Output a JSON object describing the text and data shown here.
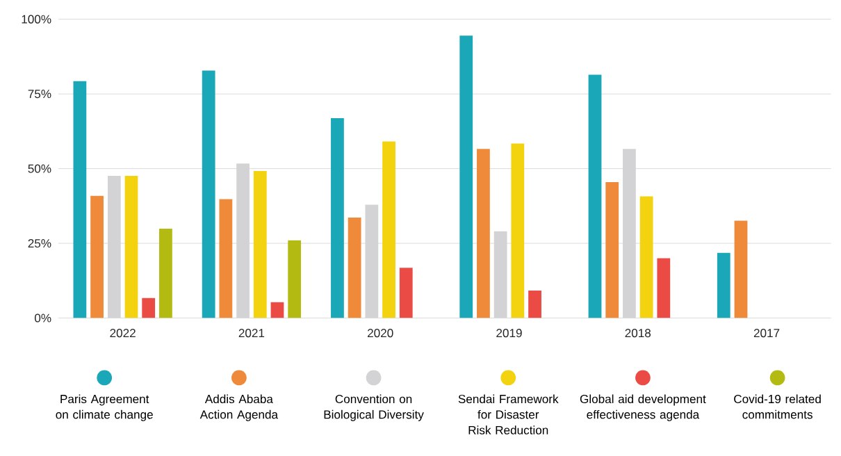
{
  "chart_data": {
    "type": "bar",
    "categories": [
      "2022",
      "2021",
      "2020",
      "2019",
      "2018",
      "2017"
    ],
    "series": [
      {
        "name": "Paris Agreement on climate change",
        "color": "#1aa8b8",
        "values": [
          79.3,
          82.8,
          66.9,
          94.5,
          81.4,
          21.8
        ]
      },
      {
        "name": "Addis Ababa Action Agenda",
        "color": "#ee8a3a",
        "values": [
          40.9,
          39.8,
          33.6,
          56.6,
          45.5,
          32.6
        ]
      },
      {
        "name": "Convention on Biological Diversity",
        "color": "#d3d3d5",
        "values": [
          47.6,
          51.7,
          37.9,
          29.0,
          56.6,
          null
        ]
      },
      {
        "name": "Sendai Framework for Disaster Risk Reduction",
        "color": "#f3d20f",
        "values": [
          47.6,
          49.2,
          59.1,
          58.4,
          40.7,
          null
        ]
      },
      {
        "name": "Global aid development effectiveness agenda",
        "color": "#ea4b45",
        "values": [
          6.7,
          5.3,
          16.8,
          9.2,
          20.0,
          null
        ]
      },
      {
        "name": "Covid-19 related commitments",
        "color": "#b3bb12",
        "values": [
          29.9,
          26.0,
          null,
          null,
          null,
          null
        ]
      }
    ],
    "ylim": [
      0,
      100
    ],
    "yticks": [
      {
        "value": 0,
        "label": "0%"
      },
      {
        "value": 25,
        "label": "25%"
      },
      {
        "value": 50,
        "label": "50%"
      },
      {
        "value": 75,
        "label": "75%"
      },
      {
        "value": 100,
        "label": "100%"
      }
    ],
    "grid": "y",
    "legend": "bottom"
  }
}
